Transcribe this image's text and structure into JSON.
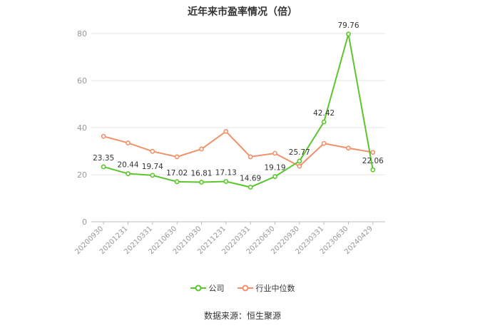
{
  "chart_data": {
    "type": "line",
    "title": "近年来市盈率情况（倍）",
    "categories": [
      "20200930",
      "20201231",
      "20210331",
      "20210630",
      "20210930",
      "20211231",
      "20220331",
      "20220630",
      "20220930",
      "20230331",
      "20230630",
      "20240429"
    ],
    "series": [
      {
        "name": "公司",
        "color": "#5cc52e",
        "values": [
          23.35,
          20.44,
          19.74,
          17.02,
          16.81,
          17.13,
          14.69,
          19.19,
          25.77,
          42.42,
          79.76,
          22.06
        ]
      },
      {
        "name": "行业中位数",
        "color": "#f2906a",
        "values": [
          36.3,
          33.5,
          29.9,
          27.6,
          30.9,
          38.4,
          27.6,
          29.1,
          23.6,
          33.3,
          31.3,
          29.5
        ]
      }
    ],
    "ylim": [
      0,
      80
    ],
    "yticks": [
      0,
      20,
      40,
      60,
      80
    ],
    "grid": true,
    "legend_position": "bottom",
    "data_labels_series": "公司"
  },
  "source": "数据来源：恒生聚源"
}
